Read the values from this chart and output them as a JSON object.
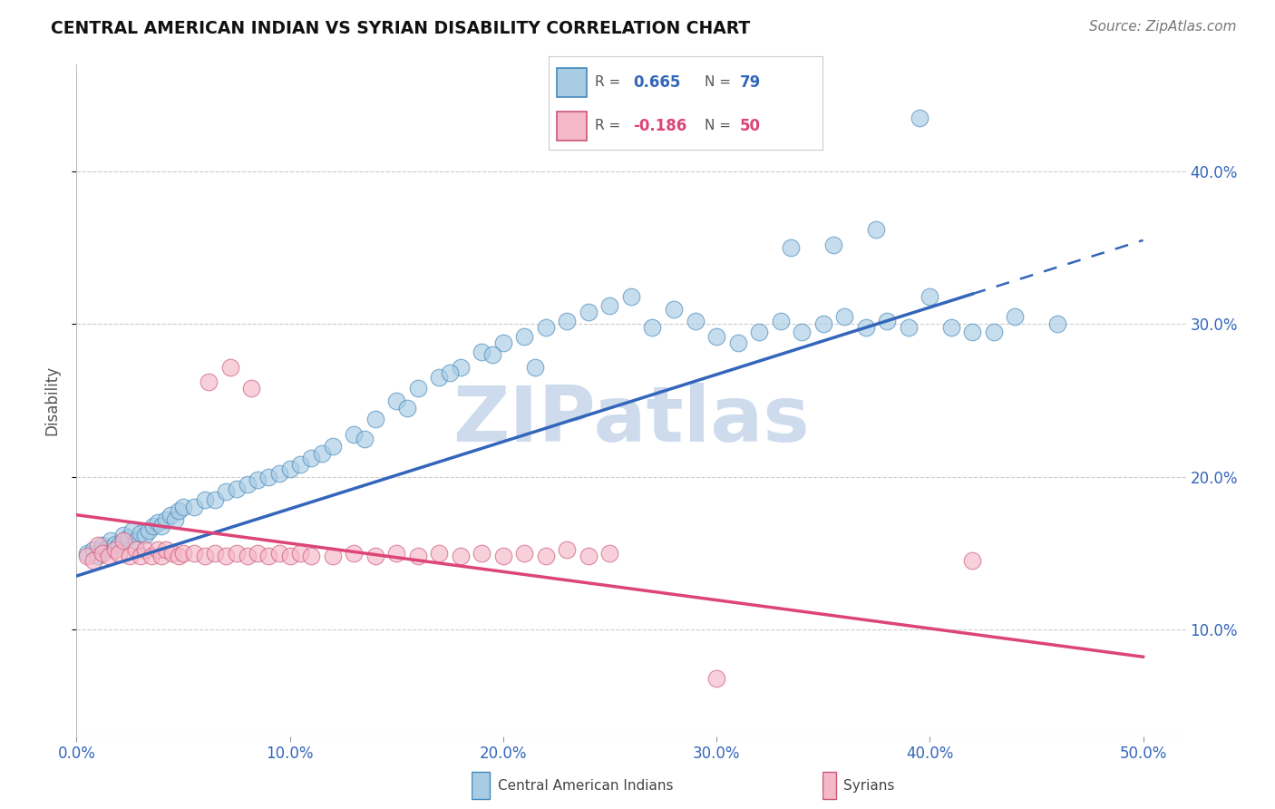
{
  "title": "CENTRAL AMERICAN INDIAN VS SYRIAN DISABILITY CORRELATION CHART",
  "source": "Source: ZipAtlas.com",
  "ylabel": "Disability",
  "xlabel_ticks": [
    "0.0%",
    "10.0%",
    "20.0%",
    "30.0%",
    "40.0%",
    "50.0%"
  ],
  "xlabel_vals": [
    0.0,
    0.1,
    0.2,
    0.3,
    0.4,
    0.5
  ],
  "ylabel_ticks": [
    "10.0%",
    "20.0%",
    "30.0%",
    "40.0%"
  ],
  "ylabel_vals": [
    0.1,
    0.2,
    0.3,
    0.4
  ],
  "xlim": [
    0.0,
    0.52
  ],
  "ylim": [
    0.03,
    0.47
  ],
  "r_blue": 0.665,
  "n_blue": 79,
  "r_pink": -0.186,
  "n_pink": 50,
  "blue_color": "#a8cce4",
  "pink_color": "#f5b8c8",
  "blue_edge_color": "#4488bb",
  "pink_edge_color": "#cc5577",
  "blue_line_color": "#3366bb",
  "pink_line_color": "#dd4477",
  "watermark_color": "#c8d8ec",
  "watermark": "ZIPatlas",
  "blue_line_x0": 0.0,
  "blue_line_y0": 0.135,
  "blue_line_x1": 0.5,
  "blue_line_y1": 0.355,
  "blue_line_solid_end": 0.42,
  "pink_line_x0": 0.0,
  "pink_line_y0": 0.175,
  "pink_line_x1": 0.5,
  "pink_line_y1": 0.082,
  "blue_x": [
    0.005,
    0.008,
    0.01,
    0.012,
    0.014,
    0.016,
    0.018,
    0.02,
    0.022,
    0.024,
    0.026,
    0.028,
    0.03,
    0.032,
    0.034,
    0.036,
    0.038,
    0.04,
    0.042,
    0.044,
    0.046,
    0.048,
    0.05,
    0.055,
    0.06,
    0.065,
    0.07,
    0.075,
    0.08,
    0.085,
    0.09,
    0.095,
    0.1,
    0.105,
    0.11,
    0.115,
    0.12,
    0.13,
    0.14,
    0.15,
    0.16,
    0.17,
    0.18,
    0.19,
    0.2,
    0.21,
    0.22,
    0.23,
    0.24,
    0.25,
    0.26,
    0.27,
    0.28,
    0.29,
    0.3,
    0.31,
    0.32,
    0.33,
    0.34,
    0.35,
    0.36,
    0.37,
    0.38,
    0.39,
    0.4,
    0.41,
    0.42,
    0.43,
    0.44,
    0.46,
    0.135,
    0.155,
    0.175,
    0.195,
    0.215,
    0.335,
    0.355,
    0.375,
    0.395
  ],
  "blue_y": [
    0.15,
    0.152,
    0.148,
    0.155,
    0.153,
    0.158,
    0.156,
    0.155,
    0.162,
    0.16,
    0.165,
    0.158,
    0.163,
    0.162,
    0.165,
    0.168,
    0.17,
    0.168,
    0.172,
    0.175,
    0.172,
    0.178,
    0.18,
    0.18,
    0.185,
    0.185,
    0.19,
    0.192,
    0.195,
    0.198,
    0.2,
    0.202,
    0.205,
    0.208,
    0.212,
    0.215,
    0.22,
    0.228,
    0.238,
    0.25,
    0.258,
    0.265,
    0.272,
    0.282,
    0.288,
    0.292,
    0.298,
    0.302,
    0.308,
    0.312,
    0.318,
    0.298,
    0.31,
    0.302,
    0.292,
    0.288,
    0.295,
    0.302,
    0.295,
    0.3,
    0.305,
    0.298,
    0.302,
    0.298,
    0.318,
    0.298,
    0.295,
    0.295,
    0.305,
    0.3,
    0.225,
    0.245,
    0.268,
    0.28,
    0.272,
    0.35,
    0.352,
    0.362,
    0.435
  ],
  "pink_x": [
    0.005,
    0.008,
    0.01,
    0.012,
    0.015,
    0.018,
    0.02,
    0.022,
    0.025,
    0.028,
    0.03,
    0.032,
    0.035,
    0.038,
    0.04,
    0.042,
    0.045,
    0.048,
    0.05,
    0.055,
    0.06,
    0.065,
    0.07,
    0.075,
    0.08,
    0.085,
    0.09,
    0.095,
    0.1,
    0.105,
    0.11,
    0.12,
    0.13,
    0.14,
    0.15,
    0.16,
    0.17,
    0.18,
    0.19,
    0.2,
    0.21,
    0.22,
    0.23,
    0.24,
    0.25,
    0.42,
    0.062,
    0.072,
    0.082,
    0.3
  ],
  "pink_y": [
    0.148,
    0.145,
    0.155,
    0.15,
    0.148,
    0.152,
    0.15,
    0.158,
    0.148,
    0.152,
    0.148,
    0.152,
    0.148,
    0.152,
    0.148,
    0.152,
    0.15,
    0.148,
    0.15,
    0.15,
    0.148,
    0.15,
    0.148,
    0.15,
    0.148,
    0.15,
    0.148,
    0.15,
    0.148,
    0.15,
    0.148,
    0.148,
    0.15,
    0.148,
    0.15,
    0.148,
    0.15,
    0.148,
    0.15,
    0.148,
    0.15,
    0.148,
    0.152,
    0.148,
    0.15,
    0.145,
    0.262,
    0.272,
    0.258,
    0.068
  ],
  "legend_r_blue": "0.665",
  "legend_n_blue": "79",
  "legend_r_pink": "-0.186",
  "legend_n_pink": "50"
}
